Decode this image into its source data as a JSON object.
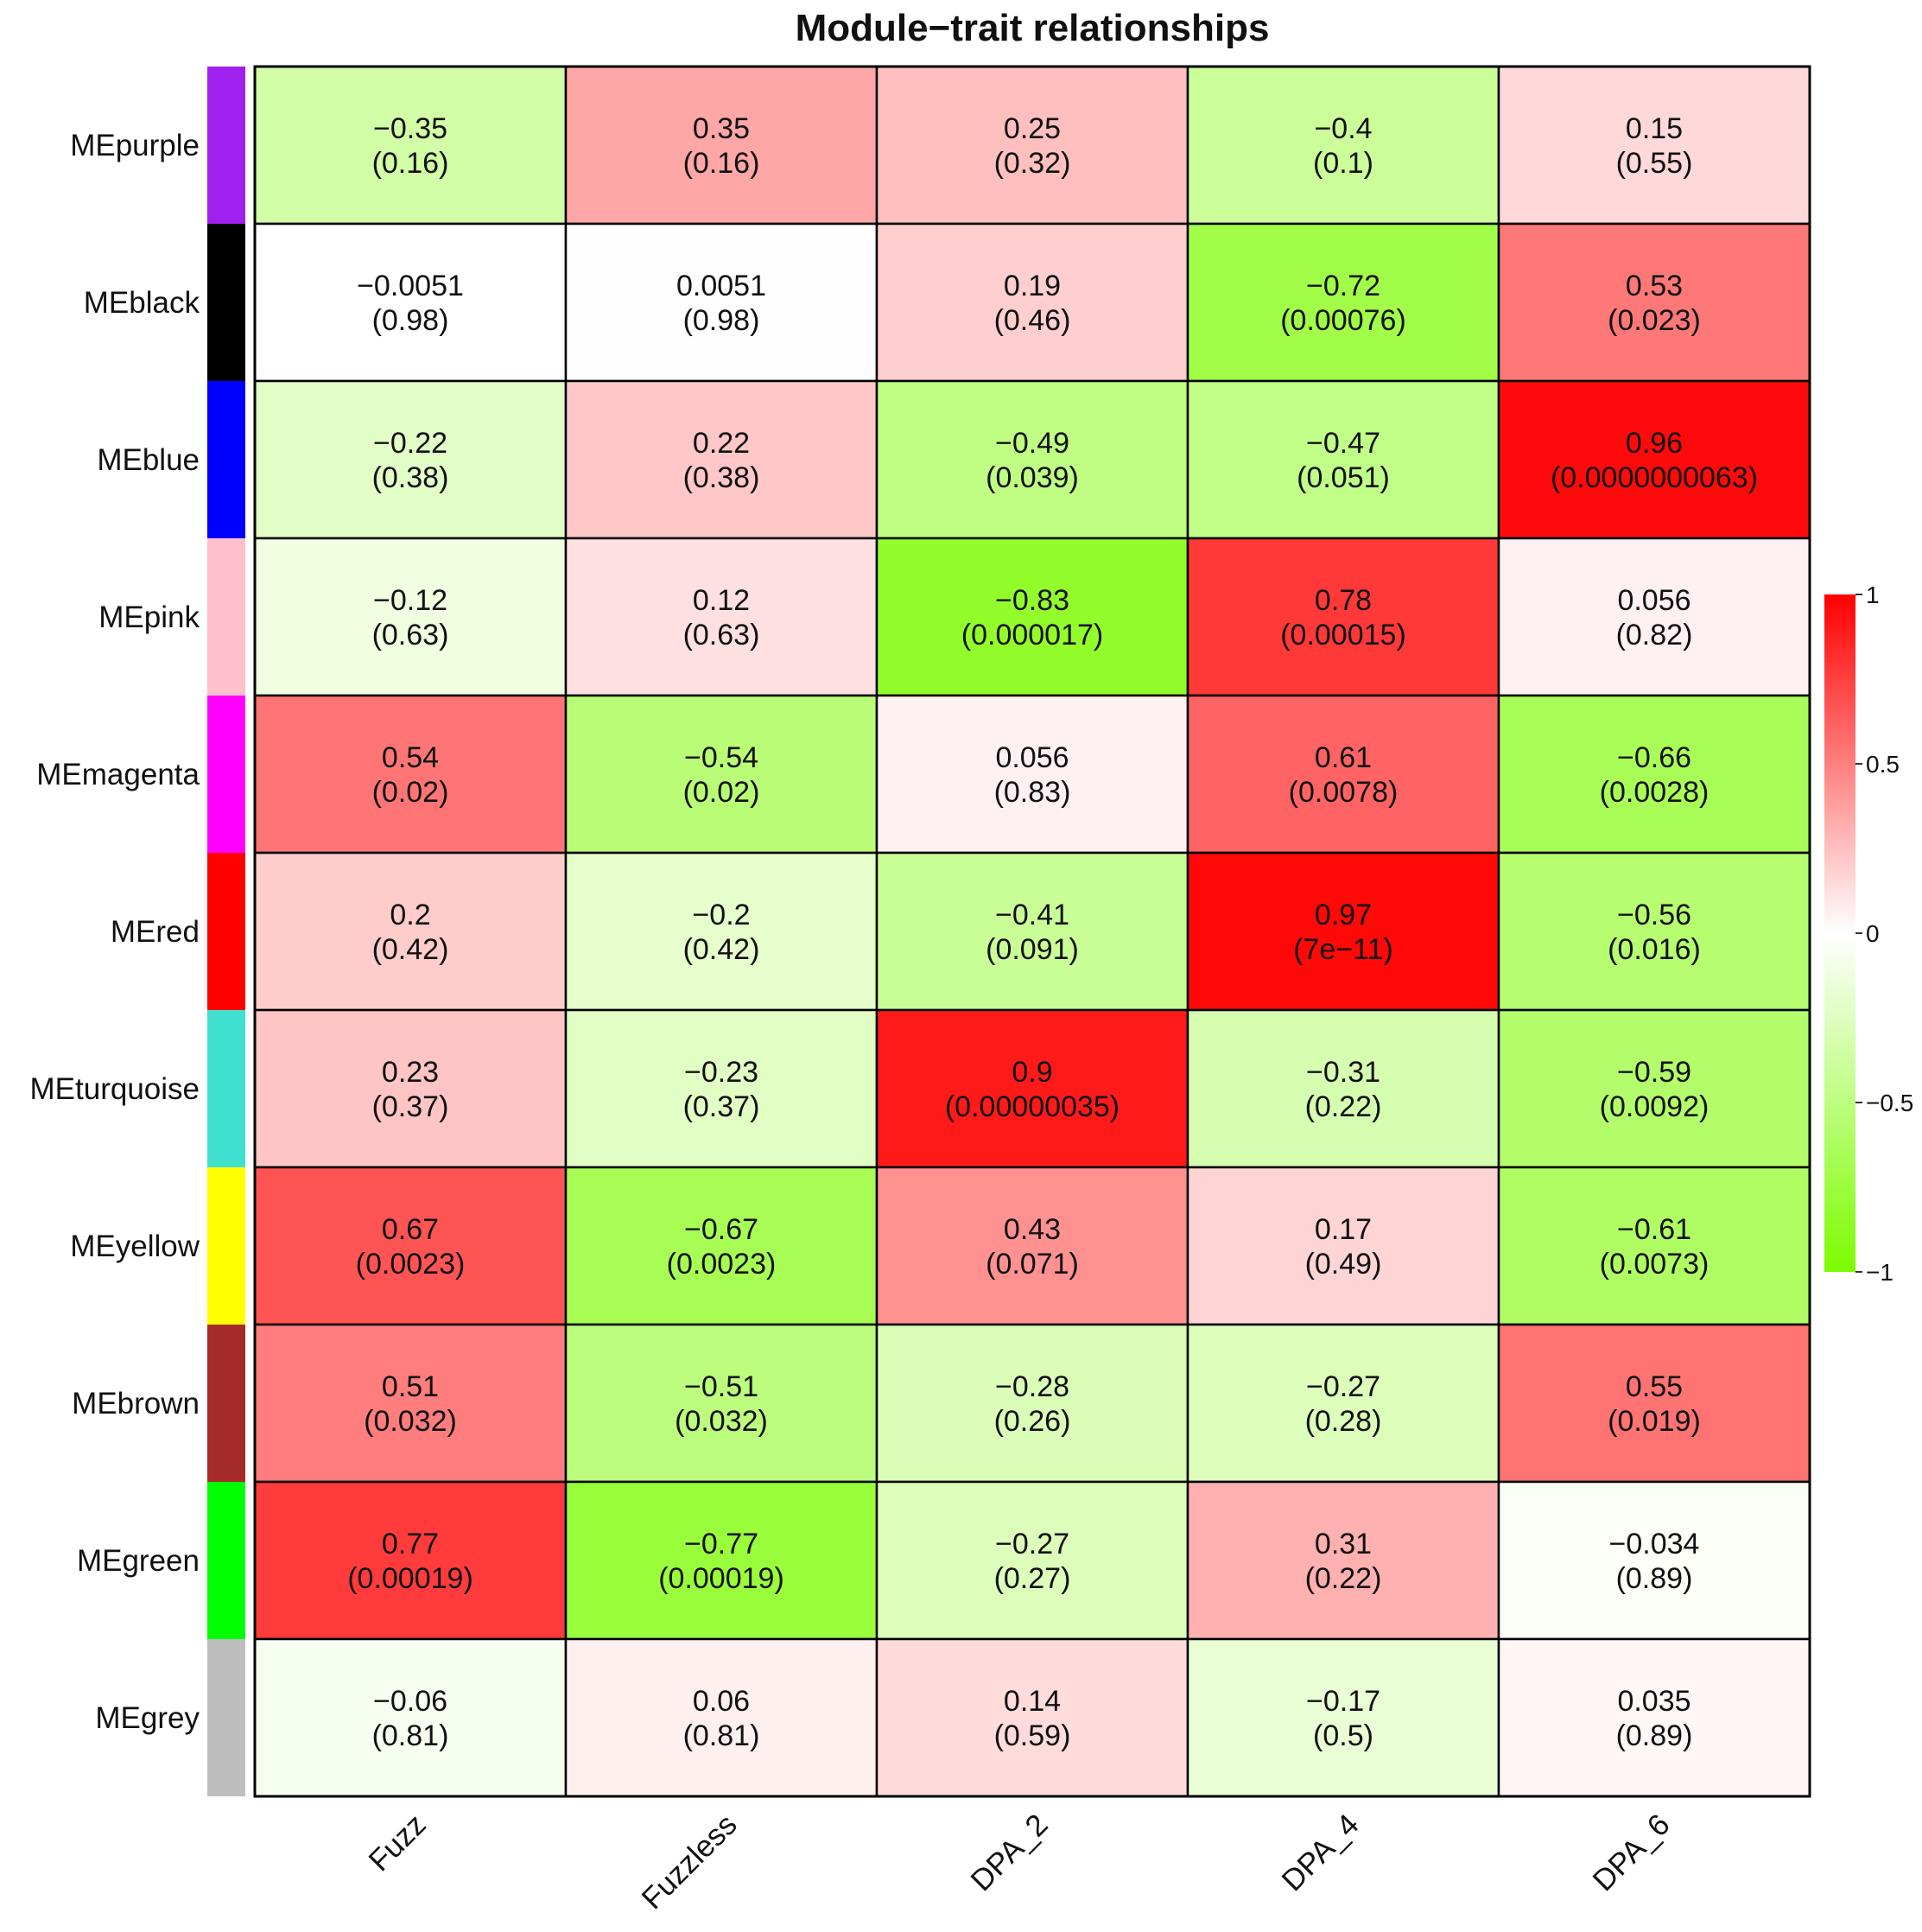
{
  "chart_data": {
    "type": "heatmap",
    "title": "Module−trait relationships",
    "columns": [
      "Fuzz",
      "Fuzzless",
      "DPA_2",
      "DPA_4",
      "DPA_6"
    ],
    "rows": [
      {
        "name": "MEpurple",
        "color": "#a020f0",
        "values": [
          -0.35,
          0.35,
          0.25,
          -0.4,
          0.15
        ],
        "pvalues": [
          "(0.16)",
          "(0.16)",
          "(0.32)",
          "(0.1)",
          "(0.55)"
        ],
        "labels": [
          "−0.35",
          "0.35",
          "0.25",
          "−0.4",
          "0.15"
        ]
      },
      {
        "name": "MEblack",
        "color": "#000000",
        "values": [
          -0.0051,
          0.0051,
          0.19,
          -0.72,
          0.53
        ],
        "pvalues": [
          "(0.98)",
          "(0.98)",
          "(0.46)",
          "(0.00076)",
          "(0.023)"
        ],
        "labels": [
          "−0.0051",
          "0.0051",
          "0.19",
          "−0.72",
          "0.53"
        ]
      },
      {
        "name": "MEblue",
        "color": "#0000ff",
        "values": [
          -0.22,
          0.22,
          -0.49,
          -0.47,
          0.96
        ],
        "pvalues": [
          "(0.38)",
          "(0.38)",
          "(0.039)",
          "(0.051)",
          "(0.0000000063)"
        ],
        "labels": [
          "−0.22",
          "0.22",
          "−0.49",
          "−0.47",
          "0.96"
        ]
      },
      {
        "name": "MEpink",
        "color": "#ffc0cb",
        "values": [
          -0.12,
          0.12,
          -0.83,
          0.78,
          0.056
        ],
        "pvalues": [
          "(0.63)",
          "(0.63)",
          "(0.000017)",
          "(0.00015)",
          "(0.82)"
        ],
        "labels": [
          "−0.12",
          "0.12",
          "−0.83",
          "0.78",
          "0.056"
        ]
      },
      {
        "name": "MEmagenta",
        "color": "#ff00ff",
        "values": [
          0.54,
          -0.54,
          0.056,
          0.61,
          -0.66
        ],
        "pvalues": [
          "(0.02)",
          "(0.02)",
          "(0.83)",
          "(0.0078)",
          "(0.0028)"
        ],
        "labels": [
          "0.54",
          "−0.54",
          "0.056",
          "0.61",
          "−0.66"
        ]
      },
      {
        "name": "MEred",
        "color": "#ff0000",
        "values": [
          0.2,
          -0.2,
          -0.41,
          0.97,
          -0.56
        ],
        "pvalues": [
          "(0.42)",
          "(0.42)",
          "(0.091)",
          "(7e−11)",
          "(0.016)"
        ],
        "labels": [
          "0.2",
          "−0.2",
          "−0.41",
          "0.97",
          "−0.56"
        ]
      },
      {
        "name": "MEturquoise",
        "color": "#40e0d0",
        "values": [
          0.23,
          -0.23,
          0.9,
          -0.31,
          -0.59
        ],
        "pvalues": [
          "(0.37)",
          "(0.37)",
          "(0.00000035)",
          "(0.22)",
          "(0.0092)"
        ],
        "labels": [
          "0.23",
          "−0.23",
          "0.9",
          "−0.31",
          "−0.59"
        ]
      },
      {
        "name": "MEyellow",
        "color": "#ffff00",
        "values": [
          0.67,
          -0.67,
          0.43,
          0.17,
          -0.61
        ],
        "pvalues": [
          "(0.0023)",
          "(0.0023)",
          "(0.071)",
          "(0.49)",
          "(0.0073)"
        ],
        "labels": [
          "0.67",
          "−0.67",
          "0.43",
          "0.17",
          "−0.61"
        ]
      },
      {
        "name": "MEbrown",
        "color": "#a52a2a",
        "values": [
          0.51,
          -0.51,
          -0.28,
          -0.27,
          0.55
        ],
        "pvalues": [
          "(0.032)",
          "(0.032)",
          "(0.26)",
          "(0.28)",
          "(0.019)"
        ],
        "labels": [
          "0.51",
          "−0.51",
          "−0.28",
          "−0.27",
          "0.55"
        ]
      },
      {
        "name": "MEgreen",
        "color": "#00ff00",
        "values": [
          0.77,
          -0.77,
          -0.27,
          0.31,
          -0.034
        ],
        "pvalues": [
          "(0.00019)",
          "(0.00019)",
          "(0.27)",
          "(0.22)",
          "(0.89)"
        ],
        "labels": [
          "0.77",
          "−0.77",
          "−0.27",
          "0.31",
          "−0.034"
        ]
      },
      {
        "name": "MEgrey",
        "color": "#bebebe",
        "values": [
          -0.06,
          0.06,
          0.14,
          -0.17,
          0.035
        ],
        "pvalues": [
          "(0.81)",
          "(0.81)",
          "(0.59)",
          "(0.5)",
          "(0.89)"
        ],
        "labels": [
          "−0.06",
          "0.06",
          "0.14",
          "−0.17",
          "0.035"
        ]
      }
    ],
    "color_scale": {
      "min": -1,
      "mid": 0,
      "max": 1,
      "low_color": "#7cfc00",
      "mid_color": "#ffffff",
      "high_color": "#ff0000",
      "ticks": [
        {
          "value": 1,
          "label": "1"
        },
        {
          "value": 0.5,
          "label": "0.5"
        },
        {
          "value": 0,
          "label": "0"
        },
        {
          "value": -0.5,
          "label": "−0.5"
        },
        {
          "value": -1,
          "label": "−1"
        }
      ]
    },
    "legend_position": "right"
  }
}
